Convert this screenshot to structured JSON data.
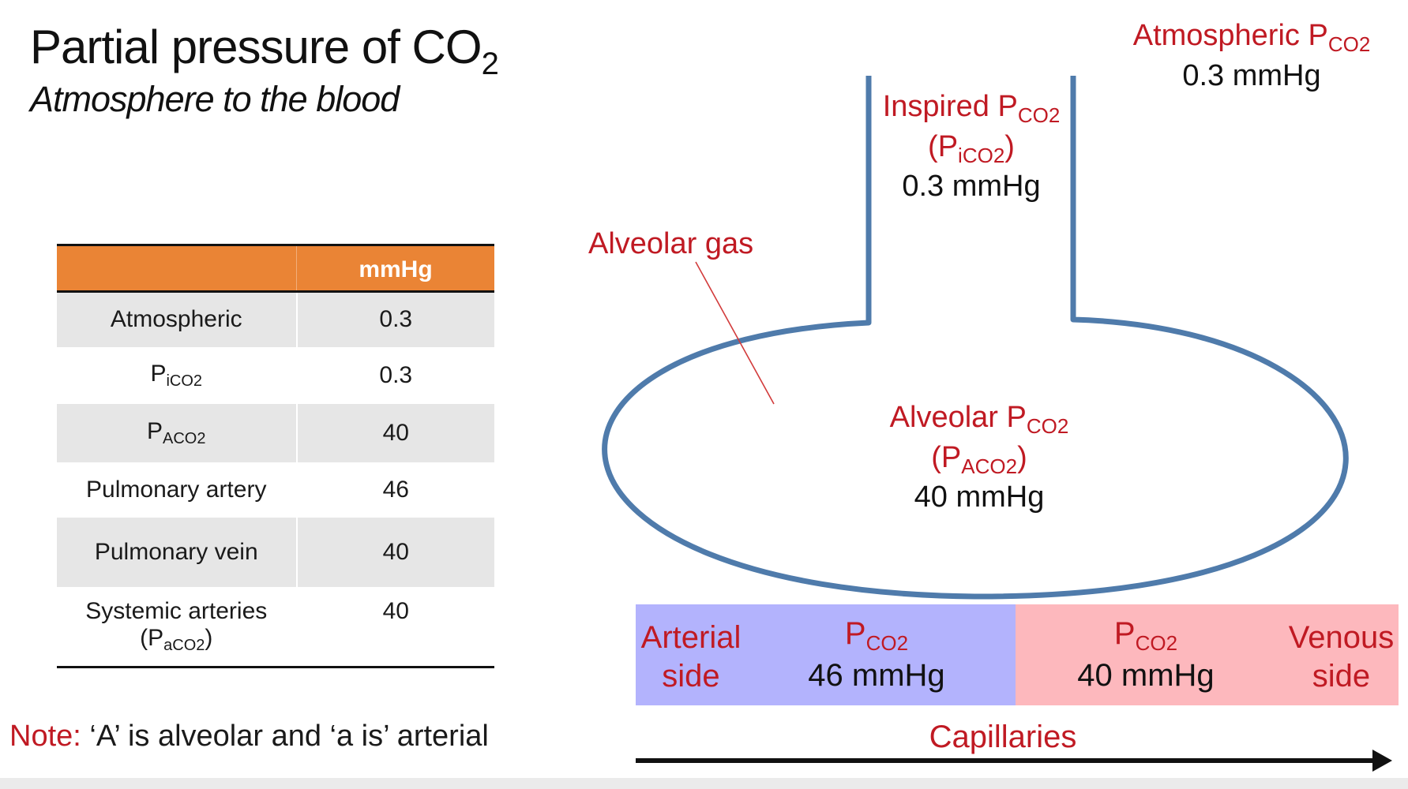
{
  "title": {
    "main": "Partial pressure of CO",
    "sub": "2"
  },
  "subtitle": "Atmosphere to the blood",
  "table": {
    "header": {
      "blank": "",
      "unit": "mmHg"
    },
    "rows": [
      {
        "label": "Atmospheric",
        "label_sub": "",
        "label_extra": "",
        "value": "0.3"
      },
      {
        "label": "P",
        "label_sub": "iCO2",
        "label_extra": "",
        "value": "0.3"
      },
      {
        "label": "P",
        "label_sub": "ACO2",
        "label_extra": "",
        "value": "40"
      },
      {
        "label": "Pulmonary artery",
        "label_sub": "",
        "label_extra": "",
        "value": "46"
      },
      {
        "label": "Pulmonary vein",
        "label_sub": "",
        "label_extra": "",
        "value": "40"
      },
      {
        "label": "Systemic arteries",
        "label_sub": "aCO2",
        "label_extra": "(P",
        "value": "40"
      }
    ]
  },
  "note": {
    "prefix": "Note:",
    "text": "‘A’ is alveolar and ‘a is’ arterial"
  },
  "diagram": {
    "atmospheric": {
      "line1": "Atmospheric P",
      "line1_sub": "CO2",
      "value": "0.3 mmHg"
    },
    "inspired": {
      "line1": "Inspired P",
      "line1_sub": "CO2",
      "sym": "P",
      "sym_sub": "iCO2",
      "value": "0.3 mmHg"
    },
    "alveolar_gas_label": "Alveolar gas",
    "alveolar": {
      "line1": "Alveolar P",
      "line1_sub": "CO2",
      "sym": "P",
      "sym_sub": "ACO2",
      "value": "40 mmHg"
    },
    "capillaries": {
      "arterial_side": [
        "Arterial",
        "side"
      ],
      "venous_side": [
        "Venous",
        "side"
      ],
      "arterial_p": {
        "sym": "P",
        "sub": "CO2",
        "value": "46 mmHg"
      },
      "venous_p": {
        "sym": "P",
        "sub": "CO2",
        "value": "40 mmHg"
      },
      "label": "Capillaries"
    },
    "colors": {
      "outline": "#4f7bab",
      "label_red": "#c01a23",
      "arterial_bg": "#b3b3fd",
      "venous_bg": "#fdb8bd",
      "table_header": "#ea8435"
    }
  }
}
